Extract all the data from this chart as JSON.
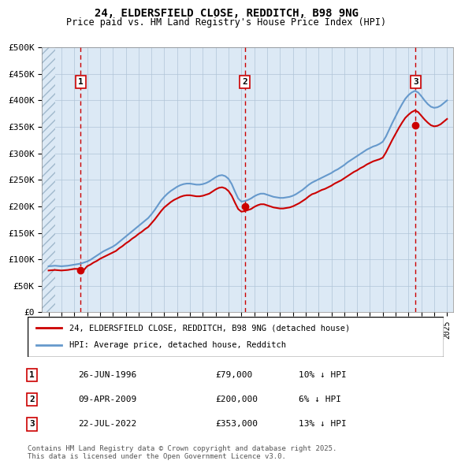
{
  "title": "24, ELDERSFIELD CLOSE, REDDITCH, B98 9NG",
  "subtitle": "Price paid vs. HM Land Registry's House Price Index (HPI)",
  "ylabel": "",
  "background_color": "#dce9f5",
  "plot_bg_color": "#dce9f5",
  "hatch_color": "#c0d4e8",
  "grid_color": "#b0c4d8",
  "ylim": [
    0,
    500000
  ],
  "yticks": [
    0,
    50000,
    100000,
    150000,
    200000,
    250000,
    300000,
    350000,
    400000,
    450000,
    500000
  ],
  "ytick_labels": [
    "£0",
    "£50K",
    "£100K",
    "£150K",
    "£200K",
    "£250K",
    "£300K",
    "£350K",
    "£400K",
    "£450K",
    "£500K"
  ],
  "xlim_start": 1993.5,
  "xlim_end": 2025.5,
  "xticks": [
    1994,
    1995,
    1996,
    1997,
    1998,
    1999,
    2000,
    2001,
    2002,
    2003,
    2004,
    2005,
    2006,
    2007,
    2008,
    2009,
    2010,
    2011,
    2012,
    2013,
    2014,
    2015,
    2016,
    2017,
    2018,
    2019,
    2020,
    2021,
    2022,
    2023,
    2024,
    2025
  ],
  "sale_dates": [
    1996.49,
    2009.27,
    2022.55
  ],
  "sale_prices": [
    79000,
    200000,
    353000
  ],
  "sale_labels": [
    "1",
    "2",
    "3"
  ],
  "red_line_color": "#cc0000",
  "blue_line_color": "#6699cc",
  "sale_dot_color": "#cc0000",
  "dashed_line_color": "#cc0000",
  "legend_label_red": "24, ELDERSFIELD CLOSE, REDDITCH, B98 9NG (detached house)",
  "legend_label_blue": "HPI: Average price, detached house, Redditch",
  "table_entries": [
    {
      "num": "1",
      "date": "26-JUN-1996",
      "price": "£79,000",
      "change": "10% ↓ HPI"
    },
    {
      "num": "2",
      "date": "09-APR-2009",
      "price": "£200,000",
      "change": "6% ↓ HPI"
    },
    {
      "num": "3",
      "date": "22-JUL-2022",
      "price": "£353,000",
      "change": "13% ↓ HPI"
    }
  ],
  "footnote": "Contains HM Land Registry data © Crown copyright and database right 2025.\nThis data is licensed under the Open Government Licence v3.0.",
  "hpi_years": [
    1994.0,
    1994.25,
    1994.5,
    1994.75,
    1995.0,
    1995.25,
    1995.5,
    1995.75,
    1996.0,
    1996.25,
    1996.5,
    1996.75,
    1997.0,
    1997.25,
    1997.5,
    1997.75,
    1998.0,
    1998.25,
    1998.5,
    1998.75,
    1999.0,
    1999.25,
    1999.5,
    1999.75,
    2000.0,
    2000.25,
    2000.5,
    2000.75,
    2001.0,
    2001.25,
    2001.5,
    2001.75,
    2002.0,
    2002.25,
    2002.5,
    2002.75,
    2003.0,
    2003.25,
    2003.5,
    2003.75,
    2004.0,
    2004.25,
    2004.5,
    2004.75,
    2005.0,
    2005.25,
    2005.5,
    2005.75,
    2006.0,
    2006.25,
    2006.5,
    2006.75,
    2007.0,
    2007.25,
    2007.5,
    2007.75,
    2008.0,
    2008.25,
    2008.5,
    2008.75,
    2009.0,
    2009.25,
    2009.5,
    2009.75,
    2010.0,
    2010.25,
    2010.5,
    2010.75,
    2011.0,
    2011.25,
    2011.5,
    2011.75,
    2012.0,
    2012.25,
    2012.5,
    2012.75,
    2013.0,
    2013.25,
    2013.5,
    2013.75,
    2014.0,
    2014.25,
    2014.5,
    2014.75,
    2015.0,
    2015.25,
    2015.5,
    2015.75,
    2016.0,
    2016.25,
    2016.5,
    2016.75,
    2017.0,
    2017.25,
    2017.5,
    2017.75,
    2018.0,
    2018.25,
    2018.5,
    2018.75,
    2019.0,
    2019.25,
    2019.5,
    2019.75,
    2020.0,
    2020.25,
    2020.5,
    2020.75,
    2021.0,
    2021.25,
    2021.5,
    2021.75,
    2022.0,
    2022.25,
    2022.5,
    2022.75,
    2023.0,
    2023.25,
    2023.5,
    2023.75,
    2024.0,
    2024.25,
    2024.5,
    2024.75,
    2025.0
  ],
  "hpi_values": [
    87000,
    87500,
    88000,
    87500,
    87000,
    87500,
    88000,
    89000,
    90000,
    91000,
    92000,
    94000,
    96000,
    99000,
    103000,
    107000,
    111000,
    115000,
    118000,
    121000,
    124000,
    128000,
    133000,
    138000,
    143000,
    148000,
    153000,
    158000,
    163000,
    168000,
    173000,
    178000,
    185000,
    193000,
    202000,
    211000,
    218000,
    224000,
    229000,
    233000,
    237000,
    240000,
    242000,
    243000,
    243000,
    242000,
    241000,
    241000,
    242000,
    244000,
    247000,
    251000,
    255000,
    258000,
    259000,
    257000,
    252000,
    242000,
    228000,
    215000,
    209000,
    210000,
    212000,
    215000,
    219000,
    222000,
    224000,
    224000,
    222000,
    220000,
    218000,
    217000,
    216000,
    216000,
    217000,
    218000,
    220000,
    223000,
    227000,
    231000,
    236000,
    241000,
    245000,
    248000,
    251000,
    254000,
    257000,
    260000,
    263000,
    267000,
    270000,
    274000,
    278000,
    283000,
    287000,
    291000,
    295000,
    299000,
    303000,
    307000,
    310000,
    313000,
    315000,
    318000,
    322000,
    332000,
    345000,
    358000,
    370000,
    382000,
    393000,
    403000,
    410000,
    415000,
    418000,
    415000,
    408000,
    400000,
    393000,
    388000,
    386000,
    387000,
    390000,
    395000,
    400000
  ],
  "red_hpi_years": [
    1994.0,
    1994.25,
    1994.5,
    1994.75,
    1995.0,
    1995.25,
    1995.5,
    1995.75,
    1996.0,
    1996.25,
    1996.5,
    1996.75,
    1997.0,
    1997.25,
    1997.5,
    1997.75,
    1998.0,
    1998.25,
    1998.5,
    1998.75,
    1999.0,
    1999.25,
    1999.5,
    1999.75,
    2000.0,
    2000.25,
    2000.5,
    2000.75,
    2001.0,
    2001.25,
    2001.5,
    2001.75,
    2002.0,
    2002.25,
    2002.5,
    2002.75,
    2003.0,
    2003.25,
    2003.5,
    2003.75,
    2004.0,
    2004.25,
    2004.5,
    2004.75,
    2005.0,
    2005.25,
    2005.5,
    2005.75,
    2006.0,
    2006.25,
    2006.5,
    2006.75,
    2007.0,
    2007.25,
    2007.5,
    2007.75,
    2008.0,
    2008.25,
    2008.5,
    2008.75,
    2009.0,
    2009.25,
    2009.5,
    2009.75,
    2010.0,
    2010.25,
    2010.5,
    2010.75,
    2011.0,
    2011.25,
    2011.5,
    2011.75,
    2012.0,
    2012.25,
    2012.5,
    2012.75,
    2013.0,
    2013.25,
    2013.5,
    2013.75,
    2014.0,
    2014.25,
    2014.5,
    2014.75,
    2015.0,
    2015.25,
    2015.5,
    2015.75,
    2016.0,
    2016.25,
    2016.5,
    2016.75,
    2017.0,
    2017.25,
    2017.5,
    2017.75,
    2018.0,
    2018.25,
    2018.5,
    2018.75,
    2019.0,
    2019.25,
    2019.5,
    2019.75,
    2020.0,
    2020.25,
    2020.5,
    2020.75,
    2021.0,
    2021.25,
    2021.5,
    2021.75,
    2022.0,
    2022.25,
    2022.5,
    2022.75,
    2023.0,
    2023.25,
    2023.5,
    2023.75,
    2024.0,
    2024.25,
    2024.5,
    2024.75,
    2025.0
  ],
  "red_values": [
    79000,
    79500,
    80000,
    79500,
    79000,
    79500,
    80000,
    81000,
    82000,
    82000,
    79000,
    80000,
    87000,
    90000,
    94000,
    97000,
    101000,
    104000,
    107000,
    110000,
    113000,
    116000,
    121000,
    125000,
    130000,
    134000,
    139000,
    143000,
    148000,
    152000,
    157000,
    161000,
    168000,
    175000,
    183000,
    191000,
    198000,
    203000,
    208000,
    212000,
    215000,
    218000,
    220000,
    221000,
    221000,
    220000,
    219000,
    219000,
    220000,
    222000,
    224000,
    228000,
    232000,
    235000,
    236000,
    234000,
    229000,
    220000,
    207000,
    195000,
    190000,
    191000,
    193000,
    195000,
    199000,
    202000,
    204000,
    204000,
    202000,
    200000,
    198000,
    197000,
    196000,
    196000,
    197000,
    198000,
    200000,
    203000,
    206000,
    210000,
    214000,
    219000,
    223000,
    225000,
    228000,
    231000,
    233000,
    236000,
    239000,
    243000,
    246000,
    249000,
    253000,
    257000,
    261000,
    265000,
    268000,
    272000,
    275000,
    279000,
    282000,
    285000,
    287000,
    289000,
    292000,
    302000,
    314000,
    326000,
    337000,
    348000,
    358000,
    367000,
    373000,
    378000,
    381000,
    378000,
    371000,
    364000,
    358000,
    353000,
    351000,
    352000,
    355000,
    360000,
    365000
  ]
}
